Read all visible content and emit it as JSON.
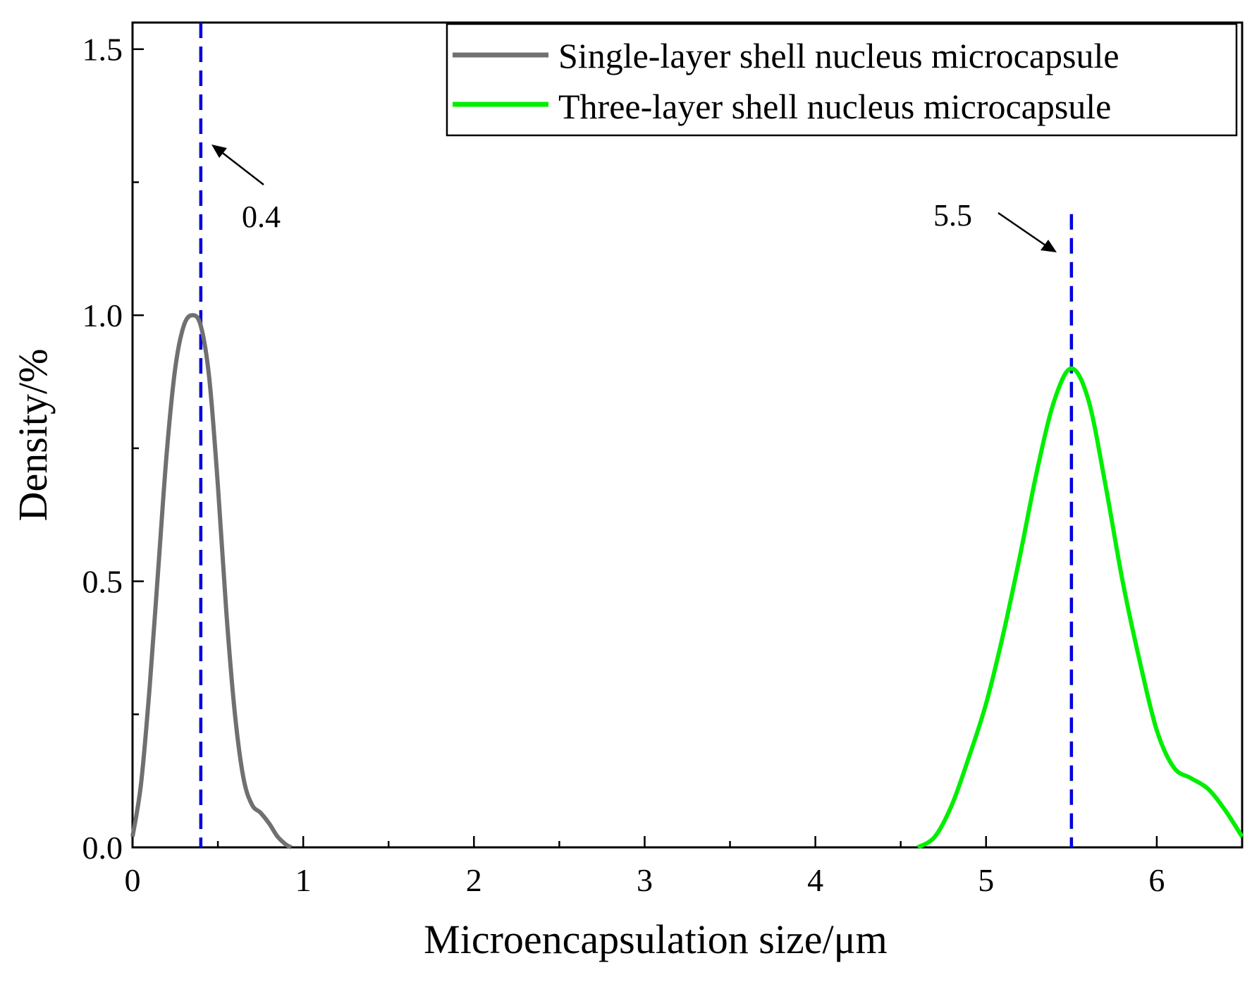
{
  "chart_data": {
    "type": "line",
    "xlabel": "Microencapsulation size/μm",
    "ylabel": "Density/%",
    "xlim": [
      0,
      6.5
    ],
    "ylim": [
      0,
      1.55
    ],
    "xticks": [
      0,
      1,
      2,
      3,
      4,
      5,
      6
    ],
    "xtick_labels": [
      "0",
      "1",
      "2",
      "3",
      "4",
      "5",
      "6"
    ],
    "yticks": [
      0.0,
      0.5,
      1.0,
      1.5
    ],
    "ytick_labels": [
      "0.0",
      "0.5",
      "1.0",
      "1.5"
    ],
    "grid": false,
    "legend_position": "top-right",
    "series": [
      {
        "name": "Single-layer shell nucleus microcapsule",
        "color": "#707070",
        "x": [
          0.0,
          0.05,
          0.1,
          0.15,
          0.2,
          0.25,
          0.3,
          0.35,
          0.4,
          0.45,
          0.5,
          0.55,
          0.6,
          0.65,
          0.7,
          0.75,
          0.8,
          0.85,
          0.9,
          0.93
        ],
        "values": [
          0.02,
          0.12,
          0.3,
          0.52,
          0.74,
          0.9,
          0.98,
          1.0,
          0.98,
          0.88,
          0.68,
          0.44,
          0.25,
          0.13,
          0.08,
          0.065,
          0.045,
          0.02,
          0.005,
          0.0
        ]
      },
      {
        "name": "Three-layer shell nucleus microcapsule",
        "color": "#00ee00",
        "x": [
          4.6,
          4.7,
          4.8,
          4.9,
          5.0,
          5.1,
          5.2,
          5.3,
          5.4,
          5.5,
          5.6,
          5.7,
          5.8,
          5.9,
          6.0,
          6.1,
          6.2,
          6.3,
          6.4,
          6.5
        ],
        "values": [
          0.0,
          0.02,
          0.08,
          0.17,
          0.27,
          0.4,
          0.55,
          0.71,
          0.84,
          0.9,
          0.84,
          0.68,
          0.5,
          0.35,
          0.22,
          0.15,
          0.13,
          0.11,
          0.07,
          0.02
        ]
      }
    ],
    "reference_lines": [
      {
        "x": 0.4,
        "color": "#0000dd",
        "style": "dashed",
        "y_top": 1.55
      },
      {
        "x": 5.5,
        "color": "#0000dd",
        "style": "dashed",
        "y_top": 1.19
      }
    ],
    "annotations": [
      {
        "text": "0.4",
        "x": 0.4
      },
      {
        "text": "5.5",
        "x": 5.5
      }
    ]
  }
}
